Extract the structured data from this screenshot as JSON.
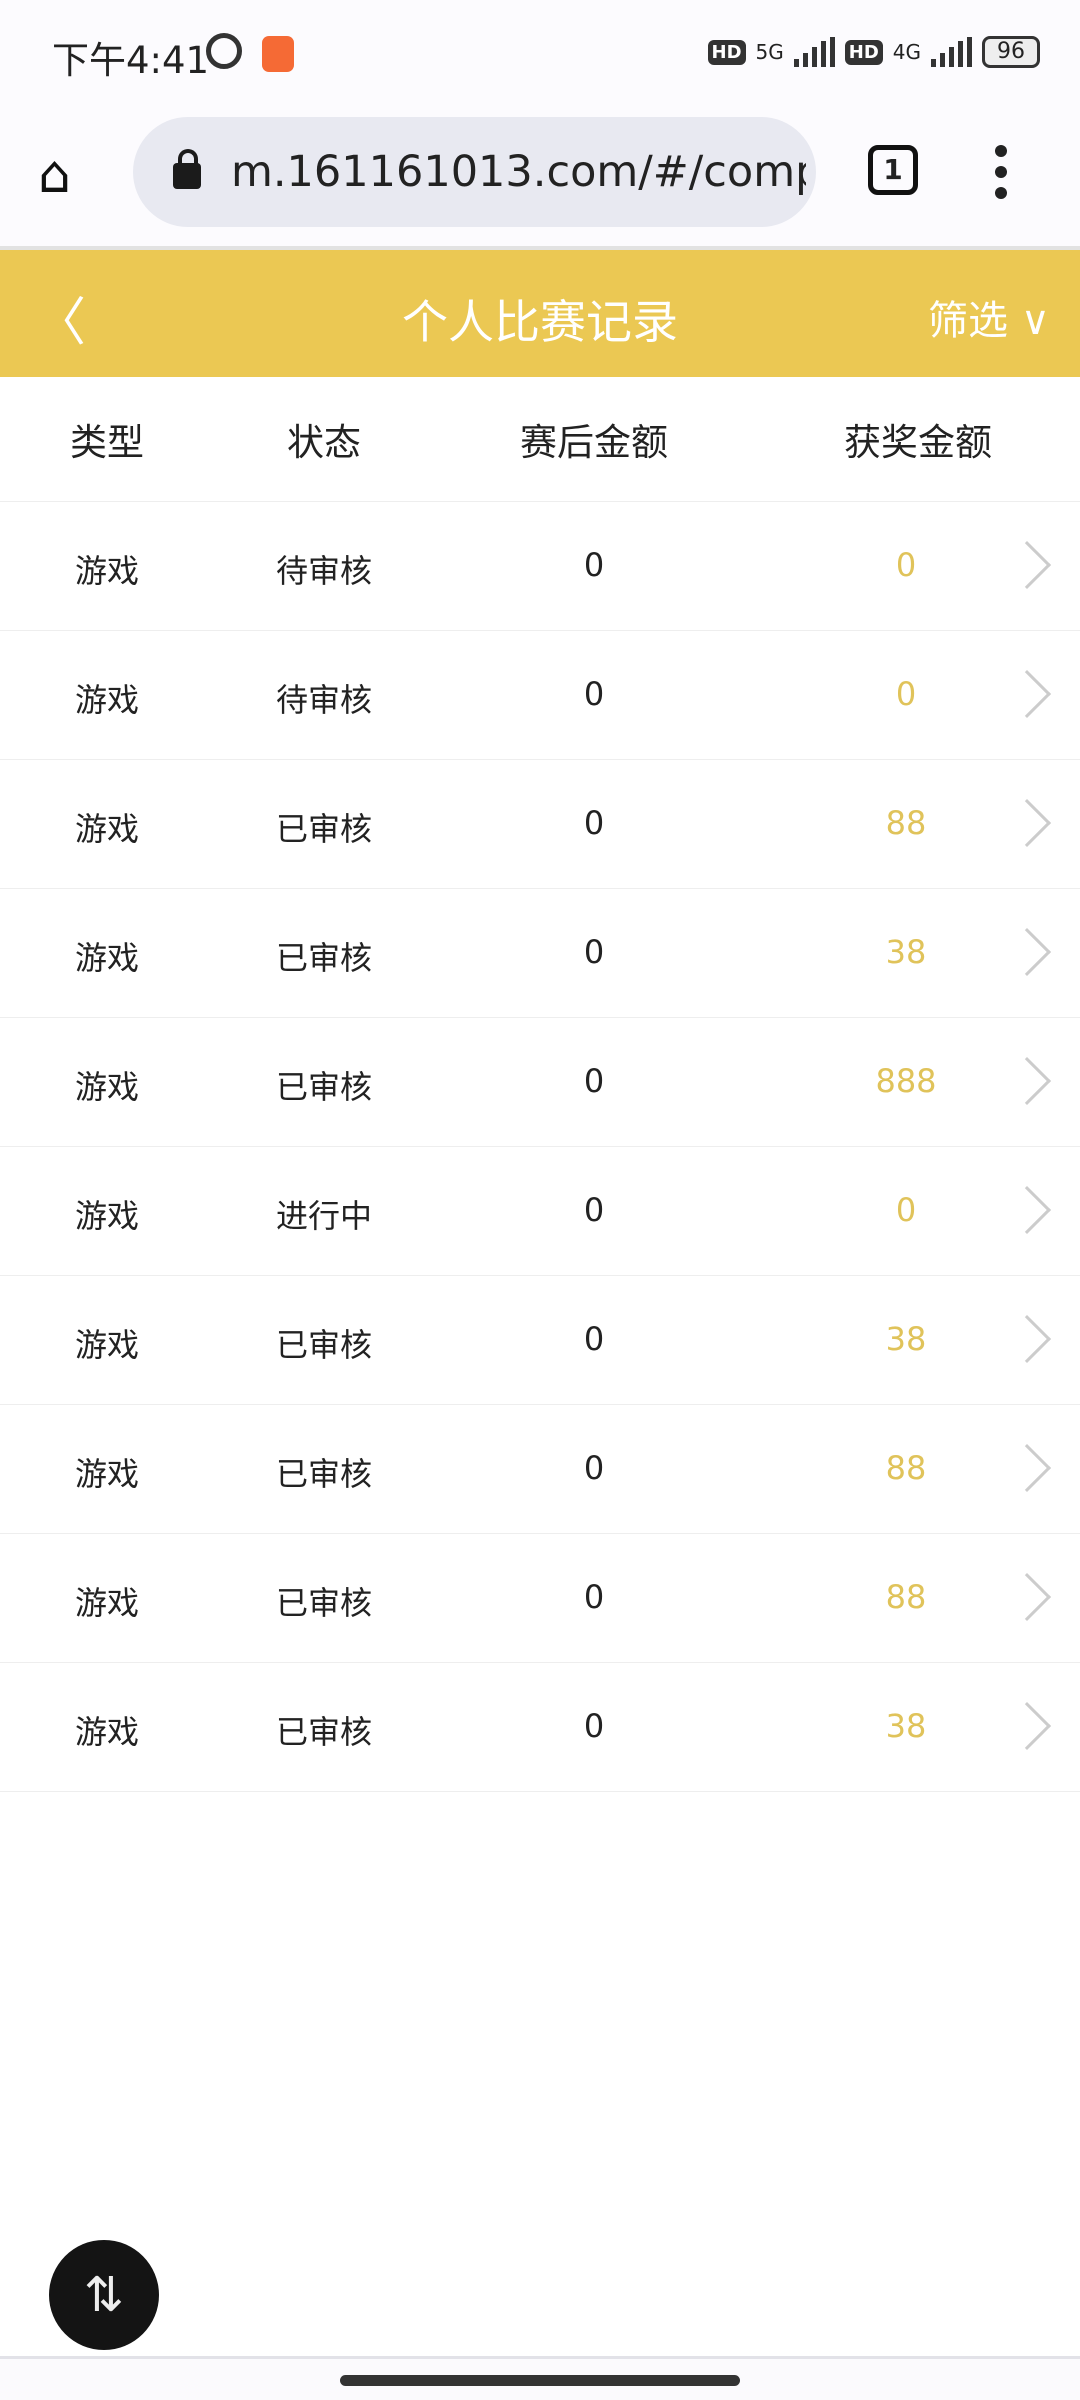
{
  "status_bar": {
    "time": "下午4:41",
    "net1": "5G",
    "net2": "4G",
    "hd": "HD",
    "battery": "96"
  },
  "browser": {
    "url": "m.161161013.com/#/compet",
    "tab_count": "1"
  },
  "header": {
    "title": "个人比赛记录",
    "filter_label": "筛选",
    "accent_color": "#ebc853"
  },
  "columns": [
    "类型",
    "状态",
    "赛后金额",
    "获奖金额"
  ],
  "rows": [
    {
      "type": "游戏",
      "status": "待审核",
      "after": "0",
      "prize": "0"
    },
    {
      "type": "游戏",
      "status": "待审核",
      "after": "0",
      "prize": "0"
    },
    {
      "type": "游戏",
      "status": "已审核",
      "after": "0",
      "prize": "88"
    },
    {
      "type": "游戏",
      "status": "已审核",
      "after": "0",
      "prize": "38"
    },
    {
      "type": "游戏",
      "status": "已审核",
      "after": "0",
      "prize": "888"
    },
    {
      "type": "游戏",
      "status": "进行中",
      "after": "0",
      "prize": "0"
    },
    {
      "type": "游戏",
      "status": "已审核",
      "after": "0",
      "prize": "38"
    },
    {
      "type": "游戏",
      "status": "已审核",
      "after": "0",
      "prize": "88"
    },
    {
      "type": "游戏",
      "status": "已审核",
      "after": "0",
      "prize": "88"
    },
    {
      "type": "游戏",
      "status": "已审核",
      "after": "0",
      "prize": "38"
    }
  ],
  "prize_color": "#e0c35a"
}
